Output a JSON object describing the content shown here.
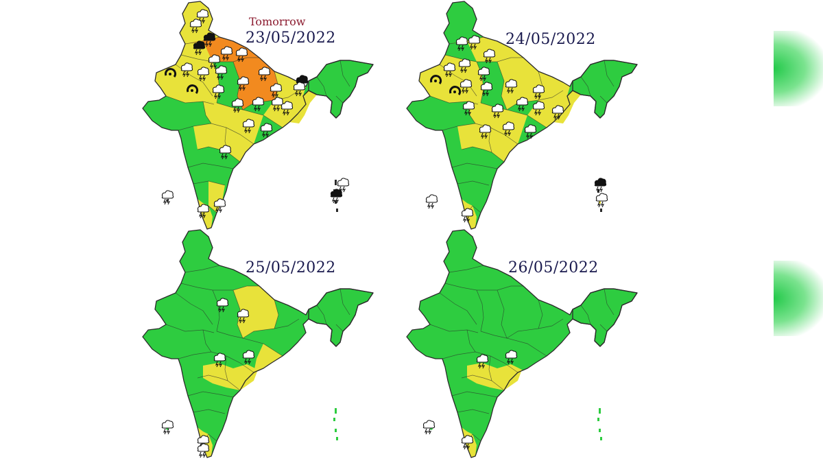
{
  "tomorrow_label": "Tomorrow",
  "panels": [
    {
      "date": "23/05/2022"
    },
    {
      "date": "24/05/2022"
    },
    {
      "date": "25/05/2022"
    },
    {
      "date": "26/05/2022"
    }
  ],
  "colors": {
    "green": "#2ecc40",
    "yellow": "#e8e23a",
    "orange": "#f28a1f",
    "border": "#2a2a2a",
    "date_text": "#1a1a4e",
    "tomorrow_text": "#8b1a2e"
  },
  "icons": [
    "thunderstorm-icon",
    "dust-storm-icon",
    "hailstorm-icon"
  ]
}
